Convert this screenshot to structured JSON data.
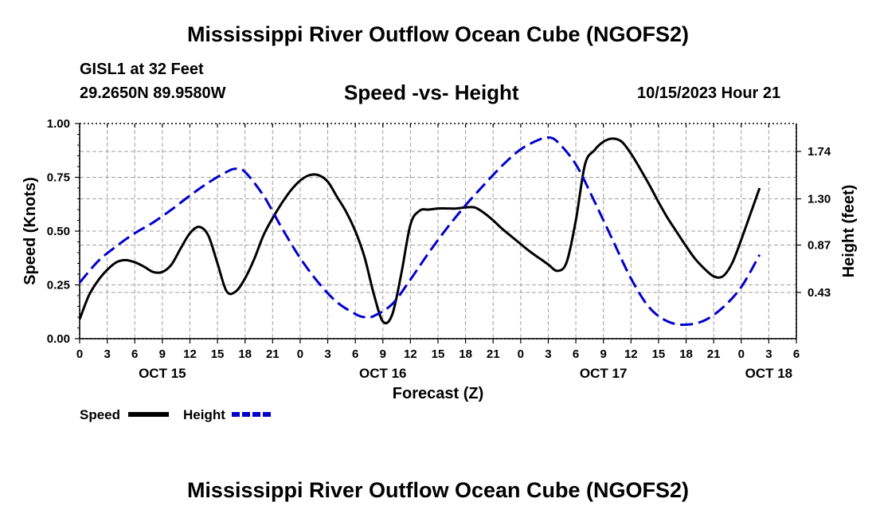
{
  "page": {
    "title": "Mississippi River Outflow Ocean Cube (NGOFS2)",
    "station": "GISL1 at 32 Feet",
    "coords": "29.2650N  89.9580W",
    "datetime": "10/15/2023 Hour 21",
    "footer_title": "Mississippi River Outflow Ocean Cube (NGOFS2)"
  },
  "chart_data": {
    "type": "line",
    "title": "Speed -vs- Height",
    "xlabel": "Forecast (Z)",
    "ylabel": "Speed (Knots)",
    "y2label": "Height (feet)",
    "x_range_hours": [
      0,
      78
    ],
    "ylim": [
      0,
      1.0
    ],
    "y2lim": [
      0,
      2.0
    ],
    "x_tick_labels": [
      "0",
      "3",
      "6",
      "9",
      "12",
      "15",
      "18",
      "21",
      "0",
      "3",
      "6",
      "9",
      "12",
      "15",
      "18",
      "21",
      "0",
      "3",
      "6",
      "9",
      "12",
      "15",
      "18",
      "21",
      "0",
      "3",
      "6"
    ],
    "day_labels": [
      {
        "hour": 9,
        "label": "OCT 15"
      },
      {
        "hour": 33,
        "label": "OCT 16"
      },
      {
        "hour": 57,
        "label": "OCT 17"
      },
      {
        "hour": 75,
        "label": "OCT 18"
      }
    ],
    "y_ticks": [
      "0.00",
      "0.25",
      "0.50",
      "0.75",
      "1.00"
    ],
    "y2_ticks": [
      "0.43",
      "0.87",
      "1.30",
      "1.74"
    ],
    "grid": true,
    "series": [
      {
        "name": "Speed",
        "axis": "left",
        "color": "#000000",
        "style": "solid",
        "points": [
          [
            0,
            0.09
          ],
          [
            1,
            0.2
          ],
          [
            2,
            0.27
          ],
          [
            3,
            0.32
          ],
          [
            4,
            0.355
          ],
          [
            5,
            0.365
          ],
          [
            6,
            0.355
          ],
          [
            7,
            0.335
          ],
          [
            8,
            0.31
          ],
          [
            9,
            0.31
          ],
          [
            10,
            0.345
          ],
          [
            11,
            0.42
          ],
          [
            12,
            0.49
          ],
          [
            13,
            0.52
          ],
          [
            14,
            0.48
          ],
          [
            15,
            0.35
          ],
          [
            16,
            0.22
          ],
          [
            17,
            0.22
          ],
          [
            18,
            0.28
          ],
          [
            19,
            0.37
          ],
          [
            20,
            0.48
          ],
          [
            21,
            0.56
          ],
          [
            22,
            0.63
          ],
          [
            23,
            0.69
          ],
          [
            24,
            0.735
          ],
          [
            25,
            0.76
          ],
          [
            26,
            0.76
          ],
          [
            27,
            0.73
          ],
          [
            28,
            0.66
          ],
          [
            29,
            0.59
          ],
          [
            30,
            0.5
          ],
          [
            31,
            0.38
          ],
          [
            32,
            0.21
          ],
          [
            33,
            0.08
          ],
          [
            34,
            0.11
          ],
          [
            35,
            0.3
          ],
          [
            36,
            0.53
          ],
          [
            37,
            0.595
          ],
          [
            38,
            0.6
          ],
          [
            39,
            0.605
          ],
          [
            40,
            0.605
          ],
          [
            41,
            0.605
          ],
          [
            42,
            0.61
          ],
          [
            43,
            0.61
          ],
          [
            44,
            0.585
          ],
          [
            45,
            0.55
          ],
          [
            46,
            0.51
          ],
          [
            47,
            0.475
          ],
          [
            48,
            0.44
          ],
          [
            49,
            0.405
          ],
          [
            50,
            0.375
          ],
          [
            51,
            0.345
          ],
          [
            52,
            0.315
          ],
          [
            53,
            0.355
          ],
          [
            54,
            0.55
          ],
          [
            55,
            0.81
          ],
          [
            56,
            0.875
          ],
          [
            57,
            0.915
          ],
          [
            58,
            0.93
          ],
          [
            59,
            0.915
          ],
          [
            60,
            0.86
          ],
          [
            61,
            0.79
          ],
          [
            62,
            0.715
          ],
          [
            63,
            0.635
          ],
          [
            64,
            0.56
          ],
          [
            65,
            0.495
          ],
          [
            66,
            0.43
          ],
          [
            67,
            0.37
          ],
          [
            68,
            0.325
          ],
          [
            69,
            0.29
          ],
          [
            70,
            0.29
          ],
          [
            71,
            0.35
          ],
          [
            72,
            0.46
          ],
          [
            73,
            0.58
          ],
          [
            74,
            0.7
          ]
        ]
      },
      {
        "name": "Height",
        "axis": "right",
        "color": "#0000cc",
        "style": "dashed",
        "points": [
          [
            0,
            0.52
          ],
          [
            2,
            0.72
          ],
          [
            4,
            0.86
          ],
          [
            6,
            0.98
          ],
          [
            8,
            1.08
          ],
          [
            10,
            1.2
          ],
          [
            12,
            1.33
          ],
          [
            14,
            1.45
          ],
          [
            16,
            1.55
          ],
          [
            17,
            1.58
          ],
          [
            18,
            1.55
          ],
          [
            20,
            1.33
          ],
          [
            22,
            1.03
          ],
          [
            24,
            0.75
          ],
          [
            26,
            0.52
          ],
          [
            28,
            0.34
          ],
          [
            30,
            0.23
          ],
          [
            31,
            0.2
          ],
          [
            32,
            0.21
          ],
          [
            34,
            0.32
          ],
          [
            36,
            0.55
          ],
          [
            38,
            0.8
          ],
          [
            40,
            1.03
          ],
          [
            42,
            1.24
          ],
          [
            44,
            1.43
          ],
          [
            46,
            1.61
          ],
          [
            48,
            1.76
          ],
          [
            50,
            1.85
          ],
          [
            51,
            1.87
          ],
          [
            52,
            1.83
          ],
          [
            54,
            1.62
          ],
          [
            56,
            1.28
          ],
          [
            58,
            0.92
          ],
          [
            60,
            0.56
          ],
          [
            62,
            0.29
          ],
          [
            64,
            0.16
          ],
          [
            66,
            0.13
          ],
          [
            68,
            0.17
          ],
          [
            70,
            0.29
          ],
          [
            72,
            0.48
          ],
          [
            74,
            0.78
          ]
        ]
      }
    ],
    "legend": [
      "Speed",
      "Height"
    ]
  }
}
